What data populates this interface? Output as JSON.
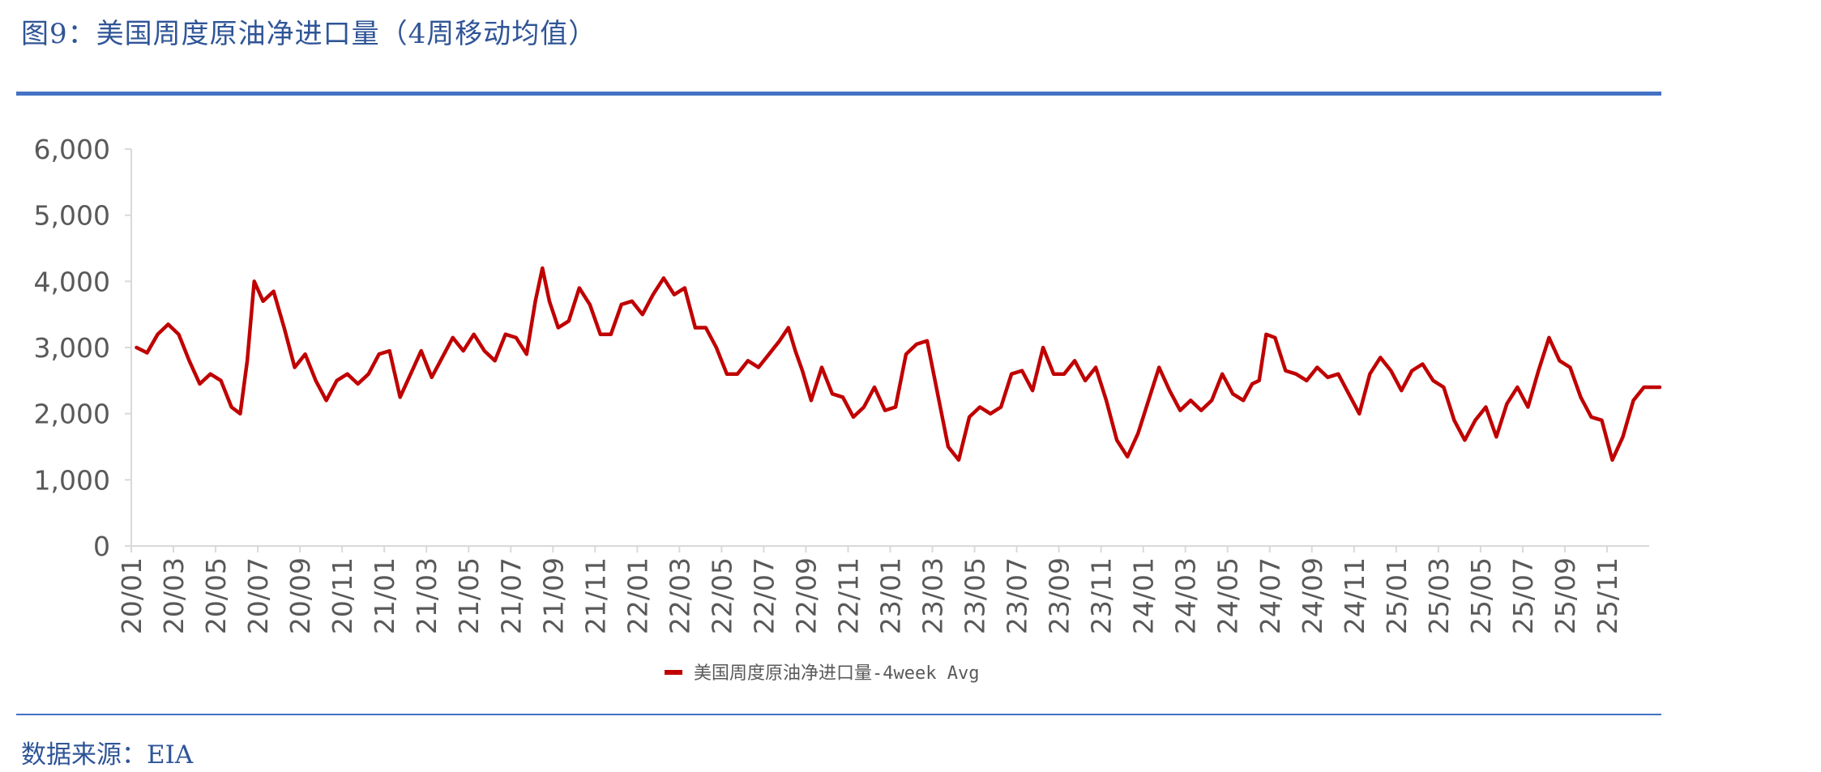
{
  "figure": {
    "title": "图9：美国周度原油净进口量（4周移动均值）",
    "source": "数据来源：EIA"
  },
  "colors": {
    "series": "#c00000",
    "rule": "#4472c4",
    "title": "#2f5597",
    "axis": "#d9d9d9",
    "tick_text": "#595959"
  },
  "chart_data": {
    "type": "line",
    "title": "",
    "xlabel": "",
    "ylabel": "",
    "ylim": [
      0,
      6000
    ],
    "yticks": [
      0,
      1000,
      2000,
      3000,
      4000,
      5000,
      6000
    ],
    "ytick_labels": [
      "0",
      "1,000",
      "2,000",
      "3,000",
      "4,000",
      "5,000",
      "6,000"
    ],
    "xtick_labels": [
      "20/01",
      "20/03",
      "20/05",
      "20/07",
      "20/09",
      "20/11",
      "21/01",
      "21/03",
      "21/05",
      "21/07",
      "21/09",
      "21/11",
      "22/01",
      "22/03",
      "22/05",
      "22/07",
      "22/09",
      "22/11",
      "23/01",
      "23/03",
      "23/05",
      "23/07",
      "23/09",
      "23/11",
      "24/01",
      "24/03",
      "24/05",
      "24/07",
      "24/09",
      "24/11",
      "25/01",
      "25/03",
      "25/05",
      "25/07",
      "25/09",
      "25/11"
    ],
    "legend": {
      "position": "bottom-center"
    },
    "grid": false,
    "series": [
      {
        "name": "美国周度原油净进口量-4week Avg",
        "points": [
          [
            "20/01",
            3000
          ],
          [
            "20/01",
            2920
          ],
          [
            "20/02",
            3200
          ],
          [
            "20/02",
            3350
          ],
          [
            "20/03",
            3200
          ],
          [
            "20/03",
            2800
          ],
          [
            "20/04",
            2450
          ],
          [
            "20/04",
            2600
          ],
          [
            "20/05",
            2500
          ],
          [
            "20/05",
            2100
          ],
          [
            "20/06",
            2000
          ],
          [
            "20/06",
            2800
          ],
          [
            "20/06",
            4000
          ],
          [
            "20/07",
            3700
          ],
          [
            "20/07",
            3850
          ],
          [
            "20/08",
            3300
          ],
          [
            "20/08",
            2700
          ],
          [
            "20/09",
            2900
          ],
          [
            "20/09",
            2500
          ],
          [
            "20/10",
            2200
          ],
          [
            "20/10",
            2500
          ],
          [
            "20/11",
            2600
          ],
          [
            "20/11",
            2450
          ],
          [
            "20/12",
            2600
          ],
          [
            "20/12",
            2900
          ],
          [
            "21/01",
            2950
          ],
          [
            "21/01",
            2250
          ],
          [
            "21/02",
            2600
          ],
          [
            "21/02",
            2950
          ],
          [
            "21/03",
            2550
          ],
          [
            "21/03",
            2850
          ],
          [
            "21/04",
            3150
          ],
          [
            "21/04",
            2950
          ],
          [
            "21/05",
            3200
          ],
          [
            "21/05",
            2950
          ],
          [
            "21/06",
            2800
          ],
          [
            "21/06",
            3200
          ],
          [
            "21/07",
            3150
          ],
          [
            "21/07",
            2900
          ],
          [
            "21/08",
            3700
          ],
          [
            "21/08",
            4200
          ],
          [
            "21/08",
            3700
          ],
          [
            "21/09",
            3300
          ],
          [
            "21/09",
            3400
          ],
          [
            "21/10",
            3900
          ],
          [
            "21/10",
            3650
          ],
          [
            "21/11",
            3200
          ],
          [
            "21/11",
            3200
          ],
          [
            "21/12",
            3650
          ],
          [
            "21/12",
            3700
          ],
          [
            "22/01",
            3500
          ],
          [
            "22/01",
            3800
          ],
          [
            "22/02",
            4050
          ],
          [
            "22/02",
            3800
          ],
          [
            "22/03",
            3900
          ],
          [
            "22/03",
            3300
          ],
          [
            "22/04",
            3300
          ],
          [
            "22/04",
            3000
          ],
          [
            "22/05",
            2600
          ],
          [
            "22/05",
            2600
          ],
          [
            "22/06",
            2800
          ],
          [
            "22/06",
            2700
          ],
          [
            "22/07",
            2900
          ],
          [
            "22/07",
            3100
          ],
          [
            "22/08",
            3300
          ],
          [
            "22/08",
            2950
          ],
          [
            "22/08",
            2650
          ],
          [
            "22/09",
            2200
          ],
          [
            "22/09",
            2700
          ],
          [
            "22/10",
            2300
          ],
          [
            "22/10",
            2250
          ],
          [
            "22/11",
            1950
          ],
          [
            "22/11",
            2100
          ],
          [
            "22/12",
            2400
          ],
          [
            "22/12",
            2050
          ],
          [
            "23/01",
            2100
          ],
          [
            "23/01",
            2900
          ],
          [
            "23/02",
            3050
          ],
          [
            "23/02",
            3100
          ],
          [
            "23/03",
            2300
          ],
          [
            "23/03",
            1500
          ],
          [
            "23/04",
            1300
          ],
          [
            "23/04",
            1950
          ],
          [
            "23/05",
            2100
          ],
          [
            "23/05",
            2000
          ],
          [
            "23/06",
            2100
          ],
          [
            "23/06",
            2600
          ],
          [
            "23/07",
            2650
          ],
          [
            "23/07",
            2350
          ],
          [
            "23/08",
            3000
          ],
          [
            "23/08",
            2600
          ],
          [
            "23/09",
            2600
          ],
          [
            "23/09",
            2800
          ],
          [
            "23/10",
            2500
          ],
          [
            "23/10",
            2700
          ],
          [
            "23/11",
            2200
          ],
          [
            "23/11",
            1600
          ],
          [
            "23/12",
            1350
          ],
          [
            "23/12",
            1700
          ],
          [
            "24/01",
            2200
          ],
          [
            "24/01",
            2700
          ],
          [
            "24/02",
            2350
          ],
          [
            "24/02",
            2050
          ],
          [
            "24/03",
            2200
          ],
          [
            "24/03",
            2050
          ],
          [
            "24/04",
            2200
          ],
          [
            "24/04",
            2600
          ],
          [
            "24/05",
            2300
          ],
          [
            "24/05",
            2200
          ],
          [
            "24/06",
            2450
          ],
          [
            "24/06",
            2500
          ],
          [
            "24/06",
            3200
          ],
          [
            "24/07",
            3150
          ],
          [
            "24/07",
            2650
          ],
          [
            "24/08",
            2600
          ],
          [
            "24/08",
            2500
          ],
          [
            "24/09",
            2700
          ],
          [
            "24/09",
            2550
          ],
          [
            "24/10",
            2600
          ],
          [
            "24/10",
            2300
          ],
          [
            "24/11",
            2000
          ],
          [
            "24/11",
            2600
          ],
          [
            "24/12",
            2850
          ],
          [
            "24/12",
            2650
          ],
          [
            "25/01",
            2350
          ],
          [
            "25/01",
            2650
          ],
          [
            "25/02",
            2750
          ],
          [
            "25/02",
            2500
          ],
          [
            "25/03",
            2400
          ],
          [
            "25/03",
            1900
          ],
          [
            "25/04",
            1600
          ],
          [
            "25/04",
            1900
          ],
          [
            "25/05",
            2100
          ],
          [
            "25/05",
            1650
          ],
          [
            "25/06",
            2150
          ],
          [
            "25/06",
            2400
          ],
          [
            "25/07",
            2100
          ],
          [
            "25/07",
            2650
          ],
          [
            "25/08",
            3150
          ],
          [
            "25/08",
            2800
          ],
          [
            "25/09",
            2700
          ],
          [
            "25/09",
            2250
          ],
          [
            "25/10",
            1950
          ],
          [
            "25/10",
            1900
          ],
          [
            "25/11",
            1300
          ],
          [
            "25/11",
            1650
          ],
          [
            "25/12",
            2200
          ],
          [
            "25/12",
            2400
          ],
          [
            "26/01",
            2400
          ]
        ]
      }
    ]
  }
}
